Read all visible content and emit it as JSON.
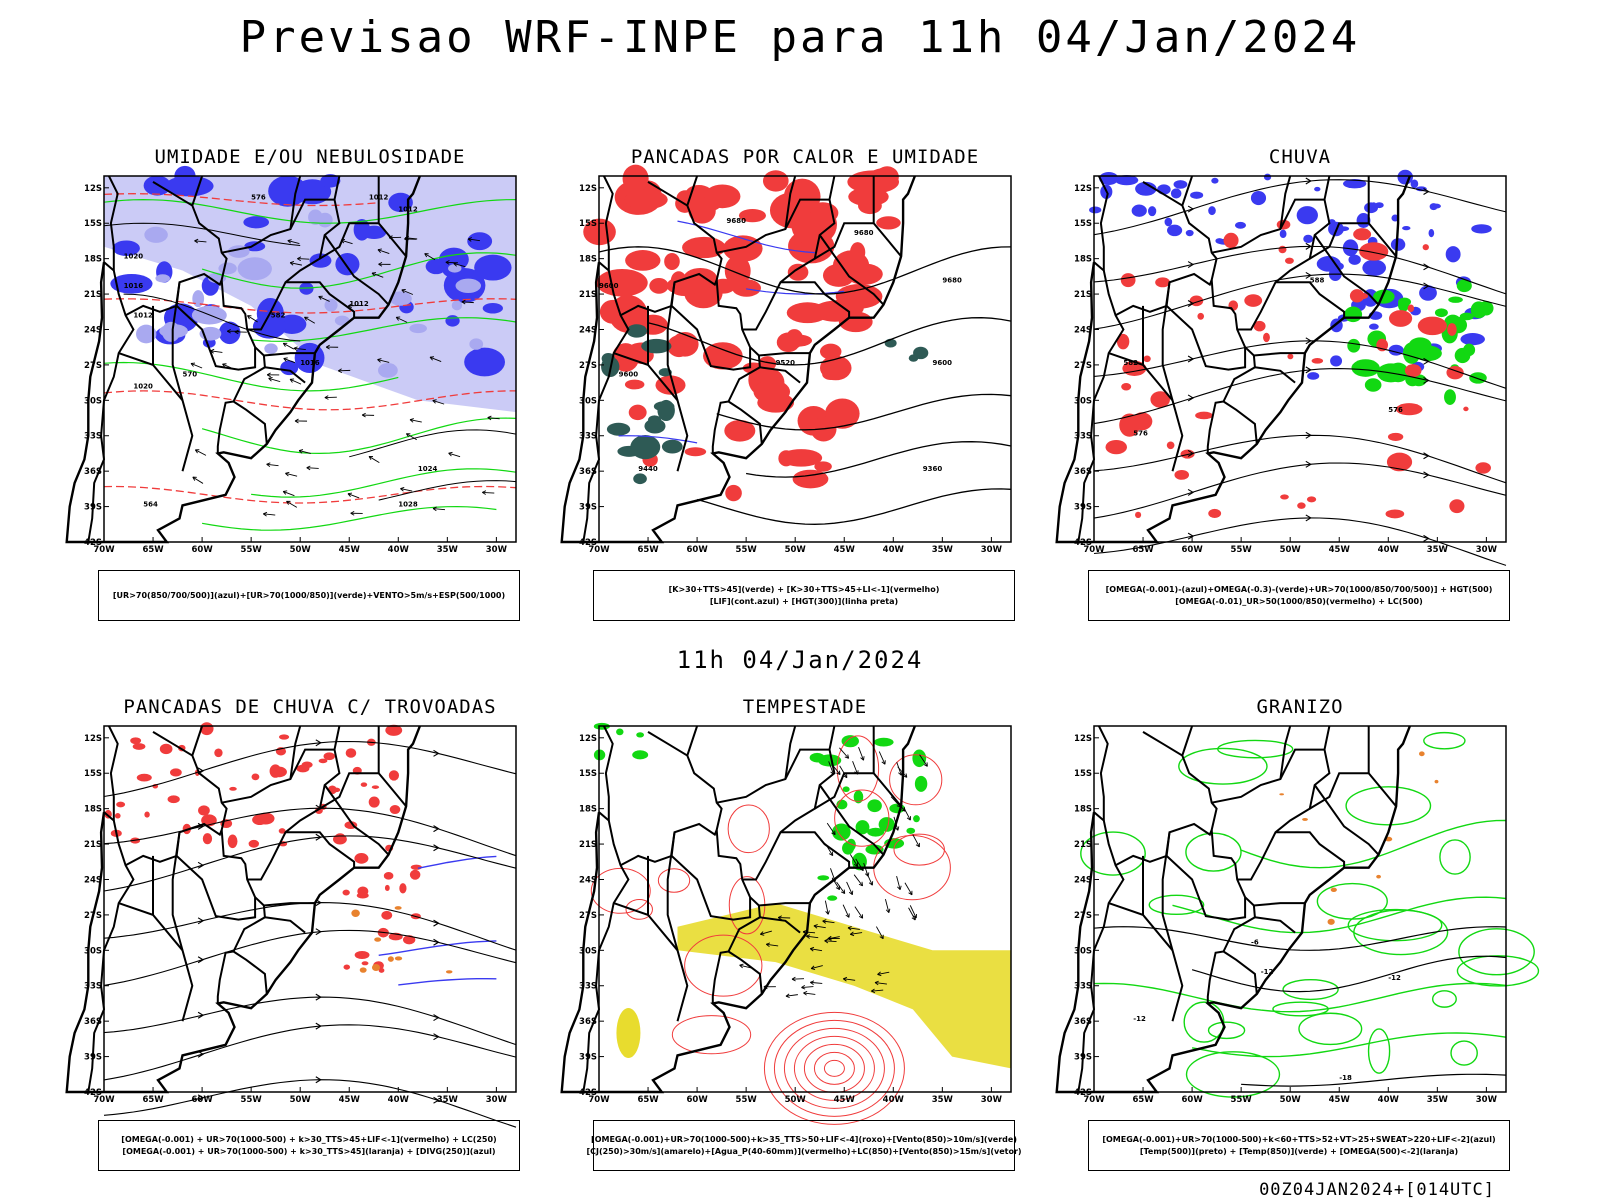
{
  "title": "Previsao WRF-INPE  para 11h 04/Jan/2024",
  "mid_title": "11h 04/Jan/2024",
  "footer": "00Z04JAN2024+[014UTC]",
  "axes": {
    "lat_labels": [
      "12S",
      "15S",
      "18S",
      "21S",
      "24S",
      "27S",
      "30S",
      "33S",
      "36S",
      "39S",
      "42S"
    ],
    "lon_labels": [
      "70W",
      "65W",
      "60W",
      "55W",
      "50W",
      "45W",
      "40W",
      "35W",
      "30W"
    ]
  },
  "panels": [
    {
      "title": "UMIDADE E/OU NEBULOSIDADE",
      "legend": [
        "[UR>70(850/700/500)](azul)+[UR>70(1000/850)](verde)+VENTO>5m/s+ESP(500/1000)"
      ],
      "contour_labels": [
        "1012",
        "1012",
        "1020",
        "1016",
        "1012",
        "1012",
        "1016",
        "1020",
        "1024",
        "1028",
        "570",
        "576",
        "582",
        "564"
      ]
    },
    {
      "title": "PANCADAS POR CALOR E UMIDADE",
      "legend": [
        "[K>30+TTS>45](verde) + [K>30+TTS>45+LI<-1](vermelho)",
        "[LIF](cont.azul) + [HGT(300)](linha preta)"
      ],
      "contour_labels": [
        "9680",
        "9680",
        "9600",
        "9680",
        "9600",
        "9520",
        "9440",
        "9360",
        "9600"
      ]
    },
    {
      "title": "CHUVA",
      "legend": [
        "[OMEGA(-0.001)-(azul)+OMEGA(-0.3)-(verde)+UR>70(1000/850/700/500)] + HGT(500)",
        "[OMEGA(-0.01)_UR>50(1000/850)(vermelho) + LC(500)"
      ],
      "contour_labels": [
        "588",
        "582",
        "576",
        "576"
      ]
    },
    {
      "title": "PANCADAS DE CHUVA C/ TROVOADAS",
      "legend": [
        "[OMEGA(-0.001) + UR>70(1000-500) + k>30_TTS>45+LIF<-1](vermelho) + LC(250)",
        "[OMEGA(-0.001) + UR>70(1000-500) + k>30_TTS>45](laranja) + [DIVG(250)](azul)"
      ],
      "contour_labels": []
    },
    {
      "title": "TEMPESTADE",
      "legend": [
        "[OMEGA(-0.001)+UR>70(1000-500)+k>35_TTS>50+LIF<-4](roxo)+[Vento(850)>10m/s](verde)",
        "[CJ(250)>30m/s](amarelo)+[Agua_P(40-60mm)](vermelho)+LC(850)+[Vento(850)>15m/s](vetor)"
      ],
      "contour_labels": []
    },
    {
      "title": "GRANIZO",
      "legend": [
        "[OMEGA(-0.001)+UR>70(1000-500)+k<60+TTS>52+VT>25+SWEAT>220+LIF<-2](azul)",
        "[Temp(500)](preto) + [Temp(850)](verde) + [OMEGA(500)<-2](laranja)"
      ],
      "contour_labels": [
        "-6",
        "-12",
        "-12",
        "-12",
        "-18"
      ]
    }
  ],
  "colors": {
    "blue": "#3a3af0",
    "lightblue": "#a9a9f0",
    "green": "#12d812",
    "red": "#f03c3c",
    "darkteal": "#2e5a55",
    "yellow": "#e8dc2e",
    "orange": "#e8822e"
  }
}
